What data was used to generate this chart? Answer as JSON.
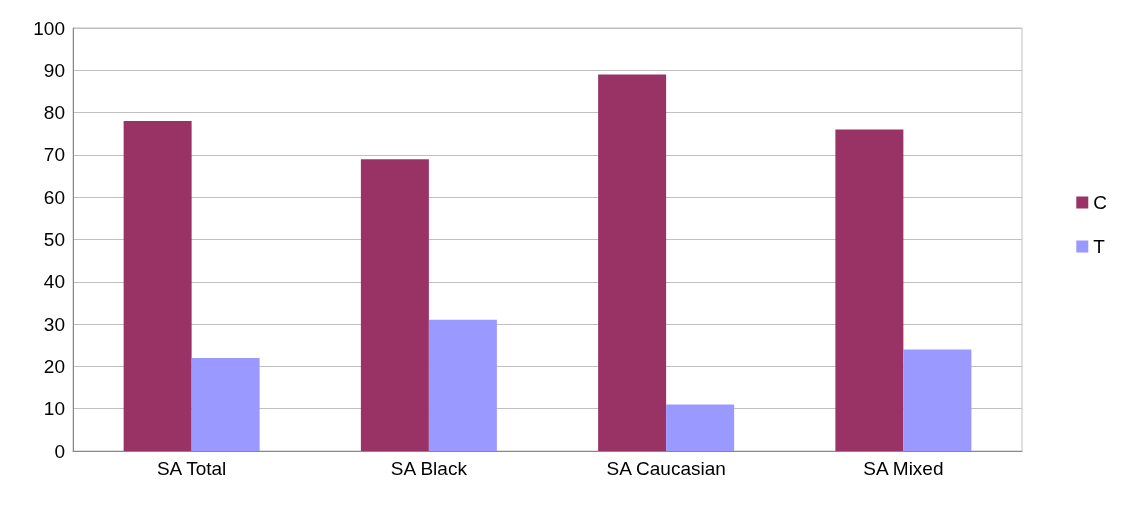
{
  "chart_data": {
    "type": "bar",
    "categories": [
      "SA Total",
      "SA Black",
      "SA Caucasian",
      "SA Mixed"
    ],
    "series": [
      {
        "name": "C",
        "color": "#993366",
        "values": [
          78,
          69,
          89,
          76
        ]
      },
      {
        "name": "T",
        "color": "#9999ff",
        "values": [
          22,
          31,
          11,
          24
        ]
      }
    ],
    "ylim": [
      0,
      100
    ],
    "yticks": [
      0,
      10,
      20,
      30,
      40,
      50,
      60,
      70,
      80,
      90,
      100
    ],
    "grid": "y",
    "legend": "right"
  }
}
